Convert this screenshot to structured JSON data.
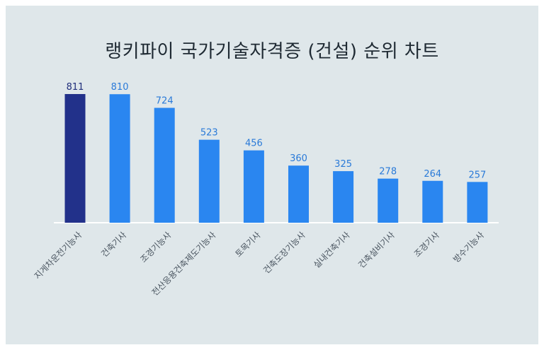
{
  "chart_data": {
    "type": "bar",
    "title": "랭키파이 국가기술자격증 (건설) 순위 차트",
    "categories": [
      "지게차운전기능사",
      "건축기사",
      "조경기능사",
      "전산응용건축제도기능사",
      "토목기사",
      "건축도장기능사",
      "실내건축기사",
      "건축설비기사",
      "조경기사",
      "방수기능사"
    ],
    "values": [
      811,
      810,
      724,
      523,
      456,
      360,
      325,
      278,
      264,
      257
    ],
    "highlight_index": 0,
    "colors": {
      "highlight": "#22318a",
      "bar": "#2a86f0",
      "highlight_label": "#1f2d7a",
      "label": "#2a7ad8",
      "axis": "#ffffff",
      "tick_label": "#4a5560"
    },
    "ylim": [
      0,
      811
    ],
    "grid": false,
    "legend": "none"
  }
}
